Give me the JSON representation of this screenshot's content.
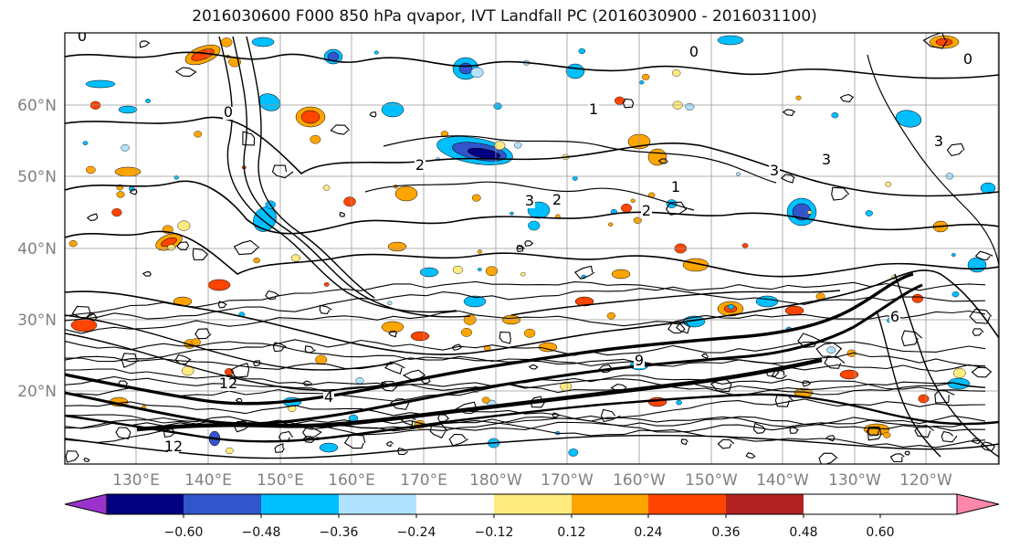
{
  "title": "2016030600 F000 850 hPa qvapor, IVT Landfall PC (2016030900 - 2016031100)",
  "lat_labels": [
    "60°N",
    "50°N",
    "40°N",
    "30°N",
    "20°N"
  ],
  "lon_labels": [
    "130°E",
    "140°E",
    "150°E",
    "160°E",
    "170°E",
    "180°W",
    "170°W",
    "160°W",
    "150°W",
    "140°W",
    "130°W",
    "120°W"
  ],
  "colorbar": {
    "colors": [
      "#9933cc",
      "#000080",
      "#3355cc",
      "#00bfff",
      "#b0e2ff",
      "#ffffff",
      "#ffeb80",
      "#ffa500",
      "#ff4500",
      "#b22222",
      "#ff88aa"
    ],
    "tick_labels": [
      "−0.60",
      "−0.48",
      "−0.36",
      "−0.24",
      "−0.12",
      "0.12",
      "0.24",
      "0.36",
      "0.48",
      "0.60"
    ]
  },
  "contour_labels": [
    "0",
    "0",
    "0",
    "0",
    "1",
    "1",
    "2",
    "2",
    "2",
    "3",
    "3",
    "3",
    "3",
    "4",
    "6",
    "9",
    "12",
    "12"
  ]
}
